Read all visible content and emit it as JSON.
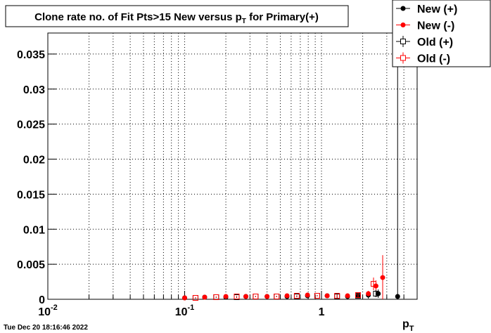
{
  "chart_data": {
    "type": "scatter",
    "title": [
      "Clone rate no. of Fit Pts>15 New versus p",
      "T",
      " for Primary(+)"
    ],
    "x_label": [
      "p",
      "T"
    ],
    "timestamp": "Tue Dec 20 18:16:46 2022",
    "log_x": true,
    "grid": true,
    "legend": "top-right",
    "xlim": [
      0.01,
      5
    ],
    "ylim": [
      0,
      0.038
    ],
    "xticks": [
      {
        "value": 0.01,
        "label": [
          "10",
          "-2"
        ]
      },
      {
        "value": 0.1,
        "label": [
          "10",
          "-1"
        ]
      },
      1
    ],
    "x_minor_ticks": [
      0.02,
      0.03,
      0.04,
      0.05,
      0.06,
      0.07,
      0.08,
      0.09,
      0.2,
      0.3,
      0.4,
      0.5,
      0.6,
      0.7,
      0.8,
      0.9,
      2,
      3,
      4
    ],
    "yticks": [
      0,
      0.005,
      0.01,
      0.015,
      0.02,
      0.025,
      0.03,
      0.035
    ],
    "series": [
      {
        "name": "New (+)",
        "color": "#000000",
        "marker": "circle",
        "x": [
          0.1,
          0.14,
          0.2,
          0.28,
          0.4,
          0.56,
          0.79,
          1.1,
          1.55,
          1.85,
          2.2,
          2.6,
          3.6
        ],
        "values": [
          0.0002,
          0.0003,
          0.0003,
          0.0004,
          0.0004,
          0.0004,
          0.0005,
          0.0005,
          0.0004,
          0.0005,
          0.0006,
          0.0008,
          0.0004
        ],
        "errors": [
          0.0001,
          0.0001,
          0.0001,
          0.0001,
          0.0001,
          0.0001,
          0.0001,
          0.0001,
          0.0002,
          0.0003,
          0.0005,
          0.0006,
          0.04
        ]
      },
      {
        "name": "New (-)",
        "color": "#ff0000",
        "marker": "circle",
        "x": [
          0.1,
          0.14,
          0.2,
          0.28,
          0.4,
          0.56,
          0.79,
          1.1,
          1.55,
          2.2,
          2.5,
          2.8
        ],
        "values": [
          0.0002,
          0.0003,
          0.0004,
          0.0004,
          0.0004,
          0.0005,
          0.0006,
          0.0005,
          0.0005,
          0.0008,
          0.0019,
          0.0031
        ],
        "errors": [
          0.0001,
          0.0001,
          0.0001,
          0.0001,
          0.0001,
          0.0001,
          0.0001,
          0.0001,
          0.0002,
          0.0004,
          0.0008,
          0.0032
        ]
      },
      {
        "name": "Old (+)",
        "color": "#000000",
        "marker": "square",
        "x": [
          0.12,
          0.17,
          0.24,
          0.33,
          0.47,
          0.66,
          0.93,
          1.3,
          1.85,
          2.5
        ],
        "values": [
          0.0002,
          0.0003,
          0.0003,
          0.0004,
          0.0004,
          0.0004,
          0.0005,
          0.0004,
          0.0005,
          0.0008
        ],
        "errors": [
          0.0001,
          0.0001,
          0.0001,
          0.0001,
          0.0001,
          0.0001,
          0.0001,
          0.0002,
          0.0003,
          0.0005
        ]
      },
      {
        "name": "Old (-)",
        "color": "#ff0000",
        "marker": "square",
        "x": [
          0.12,
          0.17,
          0.24,
          0.33,
          0.47,
          0.66,
          0.93,
          1.3,
          1.85,
          2.4
        ],
        "values": [
          0.0002,
          0.0003,
          0.0004,
          0.0004,
          0.0004,
          0.0005,
          0.0005,
          0.0005,
          0.0006,
          0.0022
        ],
        "errors": [
          0.0001,
          0.0001,
          0.0001,
          0.0001,
          0.0001,
          0.0001,
          0.0001,
          0.0002,
          0.0003,
          0.0009
        ]
      }
    ]
  }
}
